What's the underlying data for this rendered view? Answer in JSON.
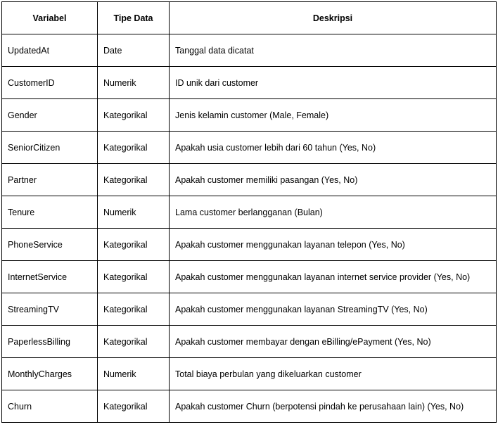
{
  "table": {
    "headers": [
      "Variabel",
      "Tipe Data",
      "Deskripsi"
    ],
    "rows": [
      [
        "UpdatedAt",
        "Date",
        "Tanggal data dicatat"
      ],
      [
        "CustomerID",
        "Numerik",
        "ID unik dari customer"
      ],
      [
        "Gender",
        "Kategorikal",
        "Jenis kelamin customer (Male, Female)"
      ],
      [
        "SeniorCitizen",
        "Kategorikal",
        "Apakah usia customer lebih dari 60 tahun (Yes, No)"
      ],
      [
        "Partner",
        "Kategorikal",
        "Apakah customer memiliki pasangan (Yes, No)"
      ],
      [
        "Tenure",
        "Numerik",
        "Lama customer berlangganan (Bulan)"
      ],
      [
        "PhoneService",
        "Kategorikal",
        "Apakah customer menggunakan layanan telepon (Yes, No)"
      ],
      [
        "InternetService",
        "Kategorikal",
        "Apakah customer menggunakan layanan internet service provider (Yes, No)"
      ],
      [
        "StreamingTV",
        "Kategorikal",
        "Apakah customer menggunakan layanan StreamingTV (Yes, No)"
      ],
      [
        "PaperlessBilling",
        "Kategorikal",
        "Apakah customer membayar dengan eBilling/ePayment (Yes, No)"
      ],
      [
        "MonthlyCharges",
        "Numerik",
        "Total biaya perbulan yang dikeluarkan customer"
      ],
      [
        "Churn",
        "Kategorikal",
        "Apakah customer Churn (berpotensi pindah ke perusahaan lain) (Yes, No)"
      ]
    ]
  }
}
